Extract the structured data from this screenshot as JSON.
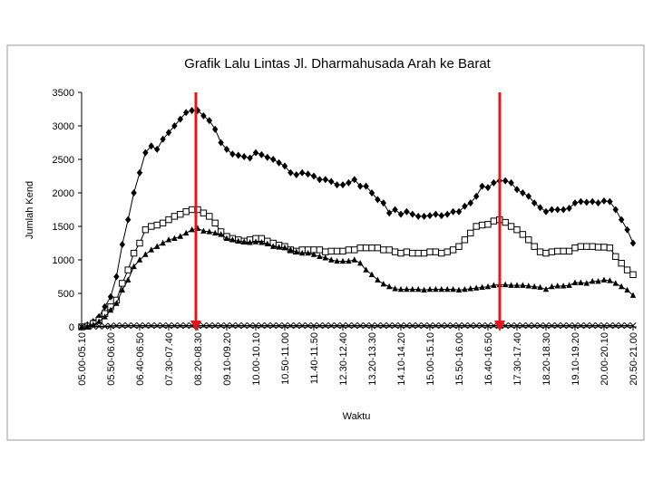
{
  "chart_data": {
    "type": "line",
    "title": "Grafik Lalu Lintas Jl. Dharmahusada Arah ke Barat",
    "x_label": "Waktu",
    "y_label": "Jumlah Kend",
    "categories": [
      "05.00-05.10",
      null,
      null,
      null,
      null,
      "05.50-06.00",
      null,
      null,
      null,
      null,
      "06.40-06.50",
      null,
      null,
      null,
      null,
      "07.30-07.40",
      null,
      null,
      null,
      null,
      "08.20-08.30",
      null,
      null,
      null,
      null,
      "09.10-09.20",
      null,
      null,
      null,
      null,
      "10.00-10.10",
      null,
      null,
      null,
      null,
      "10.50-11.00",
      null,
      null,
      null,
      null,
      "11.40-11.50",
      null,
      null,
      null,
      null,
      "12.30-12.40",
      null,
      null,
      null,
      null,
      "13.20-13.30",
      null,
      null,
      null,
      null,
      "14.10-14.20",
      null,
      null,
      null,
      null,
      "15.00-15.10",
      null,
      null,
      null,
      null,
      "15.50-16.00",
      null,
      null,
      null,
      null,
      "16.40-16.50",
      null,
      null,
      null,
      null,
      "17.30-17.40",
      null,
      null,
      null,
      null,
      "18.20-18.30",
      null,
      null,
      null,
      null,
      "19.10-19.20",
      null,
      null,
      null,
      null,
      "20.00-20.10",
      null,
      null,
      null,
      null,
      "20.50-21.00"
    ],
    "series": [
      {
        "color": "#000000",
        "marker": "diamond",
        "values": [
          0,
          30,
          80,
          150,
          300,
          450,
          750,
          1230,
          1600,
          2000,
          2300,
          2600,
          2700,
          2650,
          2800,
          2900,
          3000,
          3100,
          3200,
          3230,
          3230,
          3150,
          3080,
          2950,
          2750,
          2650,
          2580,
          2560,
          2540,
          2520,
          2600,
          2570,
          2530,
          2500,
          2450,
          2400,
          2300,
          2270,
          2300,
          2280,
          2250,
          2200,
          2200,
          2170,
          2120,
          2120,
          2150,
          2200,
          2100,
          2100,
          2000,
          1900,
          1850,
          1700,
          1750,
          1680,
          1720,
          1680,
          1650,
          1650,
          1660,
          1680,
          1660,
          1680,
          1720,
          1720,
          1800,
          1850,
          1950,
          2100,
          2080,
          2150,
          2180,
          2180,
          2150,
          2050,
          2000,
          1950,
          1850,
          1780,
          1720,
          1750,
          1750,
          1750,
          1770,
          1850,
          1870,
          1860,
          1870,
          1850,
          1880,
          1870,
          1750,
          1600,
          1450,
          1250
        ]
      },
      {
        "color": "#000000",
        "marker": "square",
        "values": [
          0,
          10,
          50,
          100,
          200,
          300,
          400,
          650,
          850,
          1100,
          1250,
          1450,
          1500,
          1520,
          1550,
          1600,
          1650,
          1680,
          1720,
          1750,
          1750,
          1700,
          1650,
          1550,
          1420,
          1350,
          1320,
          1300,
          1280,
          1300,
          1320,
          1320,
          1280,
          1250,
          1220,
          1200,
          1150,
          1130,
          1150,
          1150,
          1150,
          1150,
          1120,
          1130,
          1130,
          1130,
          1150,
          1150,
          1180,
          1180,
          1180,
          1180,
          1150,
          1150,
          1120,
          1100,
          1120,
          1100,
          1100,
          1100,
          1120,
          1120,
          1100,
          1120,
          1150,
          1200,
          1300,
          1400,
          1500,
          1520,
          1530,
          1580,
          1600,
          1560,
          1500,
          1450,
          1380,
          1300,
          1200,
          1120,
          1100,
          1120,
          1130,
          1130,
          1130,
          1180,
          1200,
          1200,
          1200,
          1190,
          1190,
          1180,
          1050,
          950,
          850,
          780
        ]
      },
      {
        "color": "#000000",
        "marker": "triangle",
        "values": [
          0,
          5,
          30,
          80,
          150,
          250,
          350,
          550,
          700,
          900,
          1000,
          1080,
          1150,
          1200,
          1250,
          1300,
          1320,
          1350,
          1400,
          1450,
          1470,
          1430,
          1420,
          1400,
          1380,
          1320,
          1300,
          1280,
          1270,
          1260,
          1270,
          1260,
          1240,
          1200,
          1190,
          1180,
          1150,
          1120,
          1100,
          1100,
          1080,
          1050,
          1030,
          1000,
          980,
          980,
          980,
          1000,
          950,
          850,
          780,
          700,
          640,
          600,
          570,
          560,
          560,
          560,
          560,
          550,
          560,
          560,
          560,
          560,
          560,
          550,
          560,
          570,
          580,
          590,
          600,
          620,
          630,
          630,
          620,
          620,
          620,
          610,
          600,
          590,
          560,
          600,
          610,
          610,
          620,
          660,
          660,
          650,
          680,
          680,
          700,
          690,
          650,
          600,
          550,
          470
        ]
      },
      {
        "color": "#000000",
        "marker": "x",
        "values": [
          0,
          0,
          5,
          10,
          10,
          15,
          20,
          20,
          20,
          20,
          20,
          20,
          20,
          20,
          20,
          20,
          20,
          20,
          20,
          20,
          20,
          20,
          20,
          20,
          20,
          20,
          20,
          20,
          20,
          20,
          20,
          20,
          20,
          20,
          20,
          20,
          20,
          20,
          20,
          20,
          20,
          20,
          20,
          20,
          20,
          20,
          20,
          20,
          20,
          20,
          20,
          20,
          20,
          20,
          20,
          20,
          20,
          20,
          20,
          20,
          20,
          20,
          20,
          20,
          20,
          20,
          20,
          20,
          20,
          20,
          20,
          20,
          20,
          20,
          20,
          20,
          20,
          20,
          20,
          20,
          20,
          20,
          20,
          20,
          20,
          20,
          20,
          20,
          20,
          20,
          20,
          20,
          20,
          20,
          20,
          20
        ]
      }
    ],
    "ylim": [
      0,
      3500
    ],
    "yticks": [
      0,
      500,
      1000,
      1500,
      2000,
      2500,
      3000,
      3500
    ],
    "grid": false
  }
}
